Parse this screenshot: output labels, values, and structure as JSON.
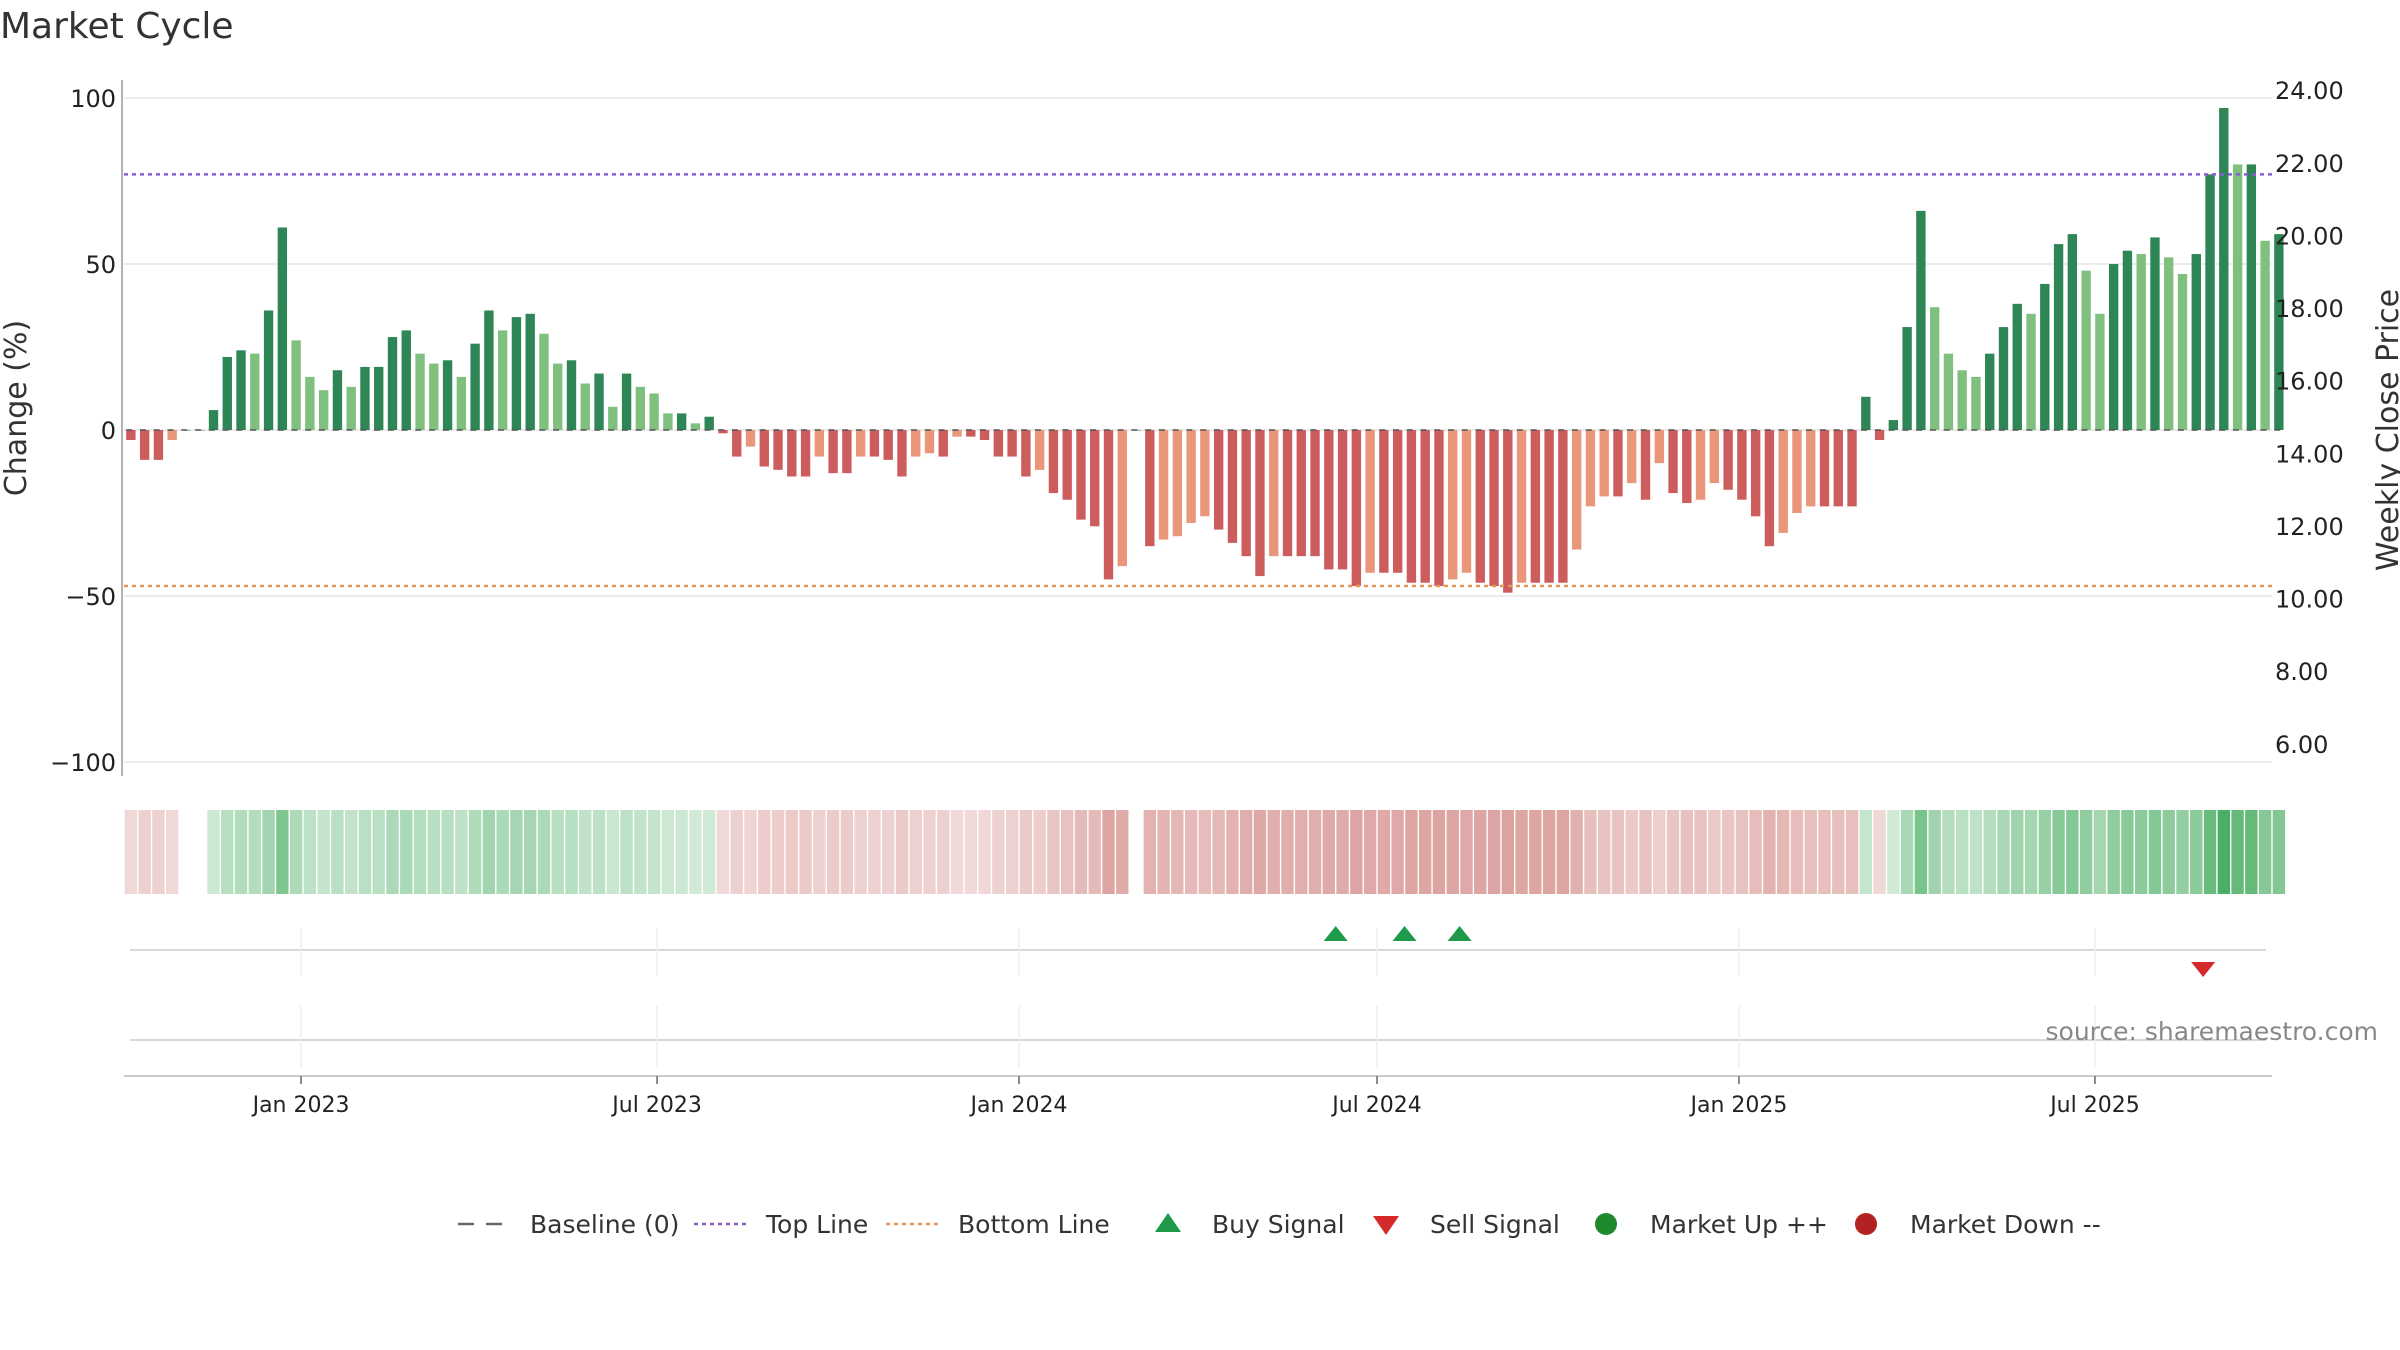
{
  "chart_data": {
    "type": "bar",
    "title": "Market Cycle",
    "ylabel": "Change (%)",
    "y2label": "Weekly Close Price",
    "ylim": [
      -100,
      100
    ],
    "y2lim": [
      5.5,
      24.5
    ],
    "yticks": [
      {
        "v": 100,
        "label": "100"
      },
      {
        "v": 50,
        "label": "50"
      },
      {
        "v": 0,
        "label": "0"
      },
      {
        "v": -50,
        "label": "−50"
      },
      {
        "v": -100,
        "label": "−100"
      }
    ],
    "y2ticks": [
      "24.00",
      "22.00",
      "20.00",
      "18.00",
      "16.00",
      "14.00",
      "12.00",
      "10.00",
      "8.00",
      "6.00"
    ],
    "x_start": "2022-10-03",
    "x_end": "2025-09-29",
    "week_start": "2022-10-03",
    "xticks": [
      {
        "date": "2023-01-01",
        "label": "Jan 2023"
      },
      {
        "date": "2023-07-01",
        "label": "Jul 2023"
      },
      {
        "date": "2024-01-01",
        "label": "Jan 2024"
      },
      {
        "date": "2024-07-01",
        "label": "Jul 2024"
      },
      {
        "date": "2025-01-01",
        "label": "Jan 2025"
      },
      {
        "date": "2025-07-01",
        "label": "Jul 2025"
      }
    ],
    "top_line": 77,
    "bottom_line": -47,
    "baseline": 0,
    "values": [
      -3,
      -9,
      -9,
      -3,
      0,
      0,
      6,
      22,
      24,
      23,
      36,
      61,
      27,
      16,
      12,
      18,
      13,
      19,
      19,
      28,
      30,
      23,
      20,
      21,
      16,
      26,
      36,
      30,
      34,
      35,
      29,
      20,
      21,
      14,
      17,
      7,
      17,
      13,
      11,
      5,
      5,
      2,
      4,
      -1,
      -8,
      -5,
      -11,
      -12,
      -14,
      -14,
      -8,
      -13,
      -13,
      -8,
      -8,
      -9,
      -14,
      -8,
      -7,
      -8,
      -2,
      -2,
      -3,
      -8,
      -8,
      -14,
      -12,
      -19,
      -21,
      -27,
      -29,
      -45,
      -41,
      0,
      -35,
      -33,
      -32,
      -28,
      -26,
      -30,
      -34,
      -38,
      -44,
      -38,
      -38,
      -38,
      -38,
      -42,
      -42,
      -47,
      -43,
      -43,
      -43,
      -46,
      -46,
      -47,
      -45,
      -43,
      -46,
      -47,
      -49,
      -46,
      -46,
      -46,
      -46,
      -36,
      -23,
      -20,
      -20,
      -16,
      -21,
      -10,
      -19,
      -22,
      -21,
      -16,
      -18,
      -21,
      -26,
      -35,
      -31,
      -25,
      -23,
      -23,
      -23,
      -23,
      10,
      -3,
      3,
      31,
      66,
      37,
      23,
      18,
      16,
      23,
      31,
      38,
      35,
      44,
      56,
      59,
      48,
      35,
      50,
      54,
      53,
      58,
      52,
      47,
      53,
      77,
      97,
      80,
      80,
      57,
      59
    ],
    "series": [
      {
        "name": "Baseline (0)",
        "style": "dashed",
        "color": "#666666"
      },
      {
        "name": "Top Line",
        "style": "dotted",
        "color": "#8a5cd6"
      },
      {
        "name": "Bottom Line",
        "style": "dotted",
        "color": "#e8955a"
      }
    ],
    "signals": {
      "buy": [
        "2024-06-10",
        "2024-07-15",
        "2024-08-12"
      ],
      "sell": [
        "2025-08-25"
      ]
    },
    "legend": {
      "position": "bottom",
      "items": [
        {
          "label": "Baseline (0)",
          "kind": "dash",
          "color": "#666666"
        },
        {
          "label": "Top Line",
          "kind": "dotted",
          "color": "#8a5cd6"
        },
        {
          "label": "Bottom Line",
          "kind": "dotted",
          "color": "#e8955a"
        },
        {
          "label": "Buy Signal",
          "kind": "triangle-up",
          "color": "#1e9a4a"
        },
        {
          "label": "Sell Signal",
          "kind": "triangle-down",
          "color": "#d42a2a"
        },
        {
          "label": "Market Up ++",
          "kind": "circle",
          "color": "#1e8a2e"
        },
        {
          "label": "Market Down --",
          "kind": "circle",
          "color": "#b22222"
        }
      ]
    },
    "colors": {
      "up_dark": "#2e8555",
      "up_light": "#7fc07f",
      "down_dark": "#cd5c5c",
      "down_light": "#e9967a",
      "top_line": "#8a5cd6",
      "bottom_line": "#e8955a",
      "grid": "#e6e6e6",
      "buy": "#1e9a4a",
      "sell": "#d42a2a"
    },
    "grid": true
  },
  "source": "source: sharemaestro.com"
}
